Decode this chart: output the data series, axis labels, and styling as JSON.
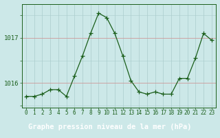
{
  "x": [
    0,
    1,
    2,
    3,
    4,
    5,
    6,
    7,
    8,
    9,
    10,
    11,
    12,
    13,
    14,
    15,
    16,
    17,
    18,
    19,
    20,
    21,
    22,
    23
  ],
  "y": [
    1015.7,
    1015.7,
    1015.75,
    1015.85,
    1015.85,
    1015.7,
    1016.15,
    1016.6,
    1017.1,
    1017.55,
    1017.45,
    1017.1,
    1016.6,
    1016.05,
    1015.8,
    1015.75,
    1015.8,
    1015.75,
    1015.75,
    1016.1,
    1016.1,
    1016.55,
    1017.1,
    1016.95
  ],
  "line_color": "#1a5e1a",
  "marker": "+",
  "marker_size": 4,
  "marker_color": "#1a5e1a",
  "background_color": "#cce8e8",
  "grid_color_x": "#aacccc",
  "grid_color_y_major": "#cc9999",
  "grid_color_y_minor": "#aacccc",
  "axis_color": "#1a5e1a",
  "bottom_bar_color": "#1a5e1a",
  "label_text": "Graphe pression niveau de la mer (hPa)",
  "label_fontsize": 7.5,
  "yticks": [
    1016,
    1017
  ],
  "ylim": [
    1015.45,
    1017.75
  ],
  "xlim": [
    -0.5,
    23.5
  ],
  "tick_fontsize": 6.5,
  "xtick_fontsize": 5.5
}
